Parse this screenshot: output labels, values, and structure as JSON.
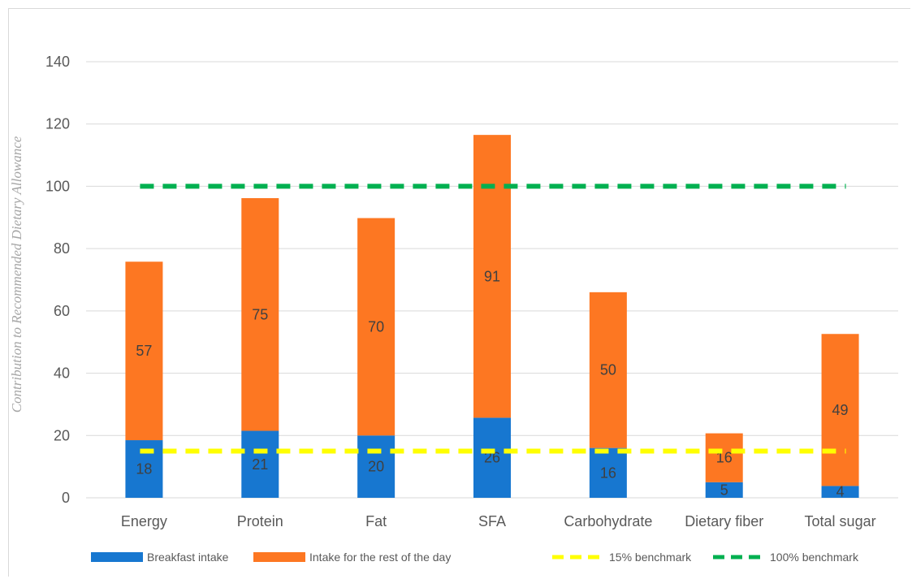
{
  "chart_data": {
    "type": "bar",
    "stacked": true,
    "title": "",
    "xlabel": "",
    "ylabel": "Contribution to Recommended Dietary Allowance",
    "ylim": [
      0,
      140
    ],
    "yticks": [
      0,
      20,
      40,
      60,
      80,
      100,
      120,
      140
    ],
    "ytick_labels": [
      "0",
      "20",
      "40",
      "60",
      "80",
      "100",
      "120",
      "140"
    ],
    "grid": true,
    "legend_position": "bottom",
    "categories": [
      "Energy",
      "Protein",
      "Fat",
      "SFA",
      "Carbohydrate",
      "Dietary fiber",
      "Total sugar"
    ],
    "series": [
      {
        "name": "Breakfast intake",
        "color": "#1777d0",
        "values": [
          18.5,
          21.5,
          20,
          25.7,
          16,
          5,
          3.8
        ],
        "labels": [
          "18",
          "21",
          "20",
          "26",
          "16",
          "5",
          "4"
        ]
      },
      {
        "name": "Intake for the rest of the day",
        "color": "#fd7722",
        "values": [
          57.3,
          74.7,
          69.8,
          90.8,
          50,
          15.7,
          48.8
        ],
        "labels": [
          "57",
          "75",
          "70",
          "91",
          "50",
          "16",
          "49"
        ]
      }
    ],
    "benchmarks": [
      {
        "name": "15% benchmark",
        "value": 15,
        "color": "#ffff00"
      },
      {
        "name": "100% benchmark",
        "value": 100,
        "color": "#00b050"
      }
    ]
  }
}
